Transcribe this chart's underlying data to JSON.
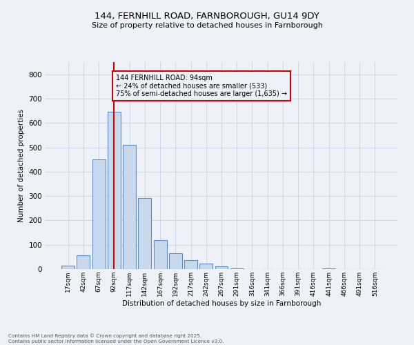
{
  "title1": "144, FERNHILL ROAD, FARNBOROUGH, GU14 9DY",
  "title2": "Size of property relative to detached houses in Farnborough",
  "xlabel": "Distribution of detached houses by size in Farnborough",
  "ylabel": "Number of detached properties",
  "bar_labels": [
    "17sqm",
    "42sqm",
    "67sqm",
    "92sqm",
    "117sqm",
    "142sqm",
    "167sqm",
    "192sqm",
    "217sqm",
    "242sqm",
    "267sqm",
    "291sqm",
    "316sqm",
    "341sqm",
    "366sqm",
    "391sqm",
    "416sqm",
    "441sqm",
    "466sqm",
    "491sqm",
    "516sqm"
  ],
  "bar_values": [
    13,
    58,
    450,
    645,
    510,
    293,
    120,
    65,
    38,
    22,
    12,
    4,
    0,
    0,
    0,
    0,
    0,
    2,
    0,
    0,
    0
  ],
  "bar_color": "#c9d9ed",
  "bar_edge_color": "#5b8dc9",
  "annotation_title": "144 FERNHILL ROAD: 94sqm",
  "annotation_line1": "← 24% of detached houses are smaller (533)",
  "annotation_line2": "75% of semi-detached houses are larger (1,635) →",
  "vline_color": "#cc0000",
  "annotation_box_color": "#cc0000",
  "ylim": [
    0,
    850
  ],
  "yticks": [
    0,
    100,
    200,
    300,
    400,
    500,
    600,
    700,
    800
  ],
  "grid_color": "#d0d8e8",
  "bg_color": "#eef2f8",
  "footer1": "Contains HM Land Registry data © Crown copyright and database right 2025.",
  "footer2": "Contains public sector information licensed under the Open Government Licence v3.0."
}
